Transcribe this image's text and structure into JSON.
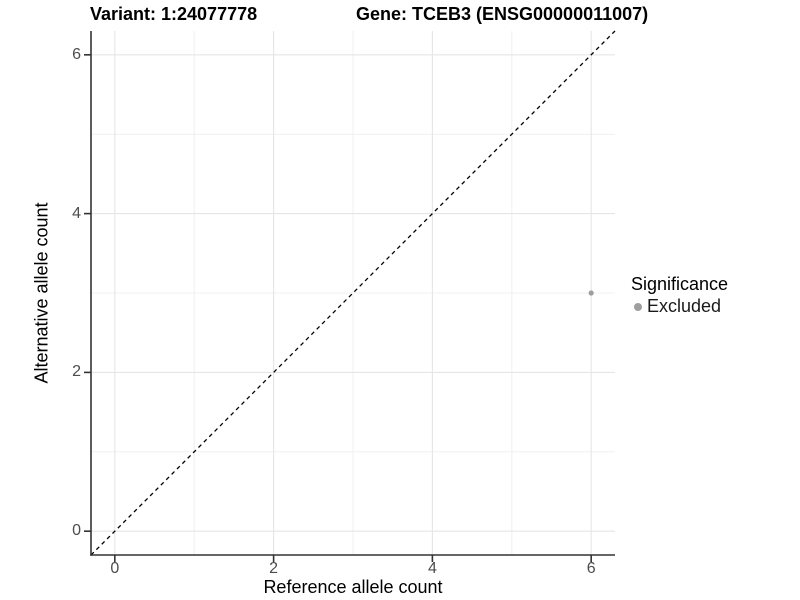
{
  "figure": {
    "title_left": "Variant: 1:24077778",
    "title_right": "Gene: TCEB3 (ENSG00000011007)",
    "x_axis_title": "Reference allele count",
    "y_axis_title": "Alternative allele count"
  },
  "legend": {
    "title": "Significance",
    "items": [
      {
        "label": "Excluded",
        "marker": "circle",
        "color": "#9e9e9e"
      }
    ]
  },
  "chart_data": {
    "type": "scatter",
    "title": "Variant: 1:24077778 | Gene: TCEB3 (ENSG00000011007)",
    "xlabel": "Reference allele count",
    "ylabel": "Alternative allele count",
    "xlim": [
      -0.3,
      6.3
    ],
    "ylim": [
      -0.3,
      6.3
    ],
    "x_ticks": [
      0,
      2,
      4,
      6
    ],
    "y_ticks": [
      0,
      2,
      4,
      6
    ],
    "x_minor_ticks": [
      1,
      3,
      5
    ],
    "y_minor_ticks": [
      1,
      3,
      5
    ],
    "grid": "major+minor",
    "legend_position": "right",
    "legend_title": "Significance",
    "series": [
      {
        "name": "Excluded",
        "color": "#9e9e9e",
        "points": [
          {
            "x": 6,
            "y": 3
          }
        ]
      }
    ],
    "reference_line": {
      "slope": 1,
      "intercept": 0,
      "style": "dashed",
      "color": "#000000"
    }
  },
  "style": {
    "grid_major_color": "#e5e5e5",
    "grid_minor_color": "#f0f0f0",
    "axis_color": "#333333",
    "tick_color": "#333333",
    "tick_label_color": "#4d4d4d",
    "point_color": "#9e9e9e"
  }
}
